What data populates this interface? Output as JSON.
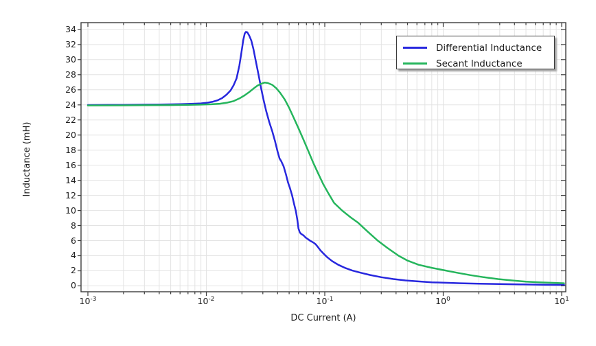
{
  "chart_data": {
    "type": "line",
    "title": "",
    "xlabel": "DC Current (A)",
    "ylabel": "Inductance (mH)",
    "x_scale": "log",
    "xlim_log10": [
      -3.058,
      1.035
    ],
    "ylim": [
      -0.78,
      34.9
    ],
    "x_tick_exponents": [
      -3,
      -2,
      -1,
      0,
      1
    ],
    "x_tick_base": "10",
    "y_ticks": [
      0,
      2,
      4,
      6,
      8,
      10,
      12,
      14,
      16,
      18,
      20,
      22,
      24,
      26,
      28,
      30,
      32,
      34
    ],
    "grid": true,
    "grid_color": "#e3e3e3",
    "axis_color": "#3c3c3c",
    "background": "#ffffff",
    "legend_position": "top-right",
    "series": [
      {
        "name": "Differential Inductance",
        "color": "#2727de",
        "points": [
          [
            0.001,
            23.98
          ],
          [
            0.0015,
            24.0
          ],
          [
            0.002,
            24.0
          ],
          [
            0.003,
            24.03
          ],
          [
            0.004,
            24.05
          ],
          [
            0.005,
            24.07
          ],
          [
            0.006,
            24.1
          ],
          [
            0.007,
            24.12
          ],
          [
            0.008,
            24.16
          ],
          [
            0.009,
            24.2
          ],
          [
            0.01,
            24.27
          ],
          [
            0.0112,
            24.4
          ],
          [
            0.0124,
            24.6
          ],
          [
            0.0136,
            24.9
          ],
          [
            0.0148,
            25.35
          ],
          [
            0.016,
            25.9
          ],
          [
            0.017,
            26.6
          ],
          [
            0.018,
            27.5
          ],
          [
            0.019,
            29.2
          ],
          [
            0.0198,
            31.0
          ],
          [
            0.0205,
            32.6
          ],
          [
            0.0211,
            33.45
          ],
          [
            0.0216,
            33.68
          ],
          [
            0.0222,
            33.62
          ],
          [
            0.023,
            33.2
          ],
          [
            0.024,
            32.5
          ],
          [
            0.025,
            31.4
          ],
          [
            0.026,
            30.0
          ],
          [
            0.0275,
            28.1
          ],
          [
            0.029,
            26.2
          ],
          [
            0.0305,
            24.6
          ],
          [
            0.032,
            23.2
          ],
          [
            0.034,
            21.7
          ],
          [
            0.036,
            20.5
          ],
          [
            0.038,
            19.2
          ],
          [
            0.04,
            17.8
          ],
          [
            0.0415,
            16.9
          ],
          [
            0.043,
            16.5
          ],
          [
            0.045,
            15.8
          ],
          [
            0.047,
            14.8
          ],
          [
            0.049,
            13.7
          ],
          [
            0.051,
            12.9
          ],
          [
            0.053,
            12.0
          ],
          [
            0.055,
            10.9
          ],
          [
            0.057,
            9.9
          ],
          [
            0.0585,
            8.9
          ],
          [
            0.06,
            7.6
          ],
          [
            0.0615,
            7.1
          ],
          [
            0.063,
            6.9
          ],
          [
            0.066,
            6.7
          ],
          [
            0.069,
            6.4
          ],
          [
            0.072,
            6.2
          ],
          [
            0.075,
            6.0
          ],
          [
            0.078,
            5.85
          ],
          [
            0.081,
            5.7
          ],
          [
            0.084,
            5.5
          ],
          [
            0.088,
            5.1
          ],
          [
            0.092,
            4.7
          ],
          [
            0.098,
            4.25
          ],
          [
            0.105,
            3.8
          ],
          [
            0.115,
            3.3
          ],
          [
            0.13,
            2.8
          ],
          [
            0.15,
            2.35
          ],
          [
            0.17,
            2.05
          ],
          [
            0.2,
            1.75
          ],
          [
            0.24,
            1.45
          ],
          [
            0.3,
            1.15
          ],
          [
            0.38,
            0.9
          ],
          [
            0.48,
            0.72
          ],
          [
            0.6,
            0.6
          ],
          [
            0.8,
            0.48
          ],
          [
            1.0,
            0.42
          ],
          [
            1.4,
            0.35
          ],
          [
            2.0,
            0.29
          ],
          [
            3.0,
            0.24
          ],
          [
            4.5,
            0.2
          ],
          [
            7.0,
            0.16
          ],
          [
            10.5,
            0.13
          ]
        ]
      },
      {
        "name": "Secant Inductance",
        "color": "#25b55c",
        "points": [
          [
            0.001,
            23.92
          ],
          [
            0.002,
            23.93
          ],
          [
            0.003,
            23.95
          ],
          [
            0.005,
            23.97
          ],
          [
            0.007,
            24.0
          ],
          [
            0.009,
            24.03
          ],
          [
            0.011,
            24.08
          ],
          [
            0.013,
            24.15
          ],
          [
            0.015,
            24.3
          ],
          [
            0.017,
            24.5
          ],
          [
            0.019,
            24.85
          ],
          [
            0.021,
            25.25
          ],
          [
            0.023,
            25.7
          ],
          [
            0.025,
            26.15
          ],
          [
            0.027,
            26.55
          ],
          [
            0.029,
            26.8
          ],
          [
            0.031,
            26.95
          ],
          [
            0.033,
            26.9
          ],
          [
            0.036,
            26.65
          ],
          [
            0.039,
            26.2
          ],
          [
            0.042,
            25.6
          ],
          [
            0.046,
            24.7
          ],
          [
            0.05,
            23.6
          ],
          [
            0.055,
            22.2
          ],
          [
            0.06,
            20.9
          ],
          [
            0.066,
            19.4
          ],
          [
            0.073,
            17.8
          ],
          [
            0.08,
            16.3
          ],
          [
            0.088,
            14.9
          ],
          [
            0.097,
            13.5
          ],
          [
            0.107,
            12.3
          ],
          [
            0.12,
            11.0
          ],
          [
            0.14,
            10.0
          ],
          [
            0.165,
            9.1
          ],
          [
            0.19,
            8.4
          ],
          [
            0.23,
            7.2
          ],
          [
            0.28,
            6.0
          ],
          [
            0.34,
            5.0
          ],
          [
            0.42,
            4.0
          ],
          [
            0.5,
            3.35
          ],
          [
            0.62,
            2.8
          ],
          [
            0.8,
            2.4
          ],
          [
            1.0,
            2.1
          ],
          [
            1.3,
            1.75
          ],
          [
            1.7,
            1.42
          ],
          [
            2.2,
            1.15
          ],
          [
            2.9,
            0.9
          ],
          [
            3.8,
            0.72
          ],
          [
            5.0,
            0.57
          ],
          [
            6.5,
            0.47
          ],
          [
            8.5,
            0.4
          ],
          [
            10.5,
            0.35
          ]
        ]
      }
    ]
  }
}
